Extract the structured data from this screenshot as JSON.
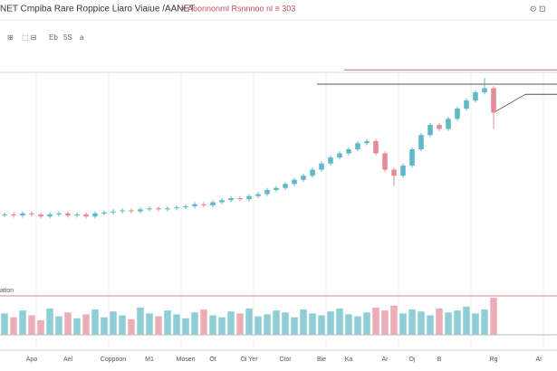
{
  "header": {
    "title": "NET Cmpiba Rare Roppice Liaro Viaiue /AANET",
    "status": "≠ Aoonnonrnl Rsnnnoo nl ≡ 303"
  },
  "toolbar": [
    "⊞",
    "⬚ ⊟",
    "Eb",
    "5S",
    "a"
  ],
  "volume_label": "ation",
  "chart_data": {
    "type": "candlestick",
    "open": [
      27.8,
      28,
      27.5,
      28.5,
      28,
      27,
      28,
      28.5,
      27.5,
      28,
      27,
      28.5,
      29,
      29.5,
      30,
      29.5,
      30.5,
      31,
      30.5,
      31,
      31.5,
      32,
      33,
      32.5,
      34,
      35,
      36,
      35.5,
      37,
      38,
      40,
      41,
      43,
      45,
      47,
      50,
      53,
      56,
      58,
      60,
      63,
      64,
      58,
      50,
      47,
      52,
      60,
      67,
      72,
      70,
      75,
      80,
      84,
      88,
      90
    ],
    "high": [
      29,
      29,
      29.5,
      29.5,
      29,
      29,
      29.5,
      29.5,
      29,
      29,
      29.5,
      30,
      30.5,
      31,
      31,
      31.5,
      32,
      32,
      32,
      32.5,
      33,
      34,
      34,
      35,
      36,
      37,
      37,
      38,
      39,
      41,
      42,
      44,
      46,
      48,
      51,
      54,
      57,
      59,
      61,
      64,
      65,
      65,
      59,
      51,
      53,
      61,
      68,
      73,
      73,
      76,
      81,
      85,
      89,
      95,
      91
    ],
    "low": [
      26.8,
      26.5,
      26.5,
      27,
      26,
      26,
      27,
      26.5,
      26.5,
      26,
      26,
      27.5,
      28,
      28.5,
      28.5,
      28.5,
      29.5,
      29.5,
      29.5,
      30,
      30.5,
      31,
      31.5,
      31.5,
      33,
      34,
      34.5,
      34.5,
      36,
      37,
      39,
      40,
      42,
      44,
      46,
      49,
      52,
      55,
      57,
      59,
      62,
      57,
      49,
      42,
      46,
      51,
      59,
      66,
      69,
      69,
      74,
      79,
      83,
      87,
      70
    ],
    "close": [
      28,
      27.5,
      28.5,
      28,
      27,
      28,
      28.5,
      27.5,
      28,
      27,
      28.5,
      29,
      29.5,
      30,
      29.5,
      30.5,
      31,
      30.5,
      31,
      31.5,
      32,
      33,
      32.5,
      34,
      35,
      36,
      35.5,
      37,
      38,
      40,
      41,
      43,
      45,
      47,
      50,
      53,
      56,
      58,
      60,
      63,
      64,
      58,
      50,
      47,
      52,
      60,
      67,
      72,
      70,
      75,
      80,
      84,
      88,
      90,
      78
    ],
    "volume": [
      22,
      18,
      25,
      20,
      15,
      27,
      19,
      23,
      17,
      21,
      26,
      18,
      24,
      20,
      16,
      28,
      22,
      19,
      25,
      21,
      17,
      23,
      26,
      20,
      18,
      24,
      22,
      27,
      19,
      21,
      25,
      23,
      18,
      26,
      22,
      20,
      24,
      27,
      21,
      19,
      23,
      28,
      25,
      30,
      22,
      26,
      24,
      20,
      27,
      23,
      25,
      29,
      22,
      26,
      38
    ],
    "up_color": "#5fb8c6",
    "down_color": "#e48a98",
    "ylim": [
      0,
      100
    ],
    "volume_ylim": [
      0,
      40
    ],
    "xlim": [
      -0.5,
      61
    ],
    "levels": [
      99,
      92,
      87
    ],
    "xticks": [
      {
        "value": 3,
        "label": "Apo"
      },
      {
        "value": 7,
        "label": "Ael"
      },
      {
        "value": 12,
        "label": "Coppoon"
      },
      {
        "value": 16,
        "label": "M1"
      },
      {
        "value": 20,
        "label": "Mosen"
      },
      {
        "value": 23,
        "label": "Ot"
      },
      {
        "value": 27,
        "label": "Oi Yer"
      },
      {
        "value": 31,
        "label": "Ctor"
      },
      {
        "value": 35,
        "label": "Bie"
      },
      {
        "value": 38,
        "label": "Ka"
      },
      {
        "value": 42,
        "label": "Ar"
      },
      {
        "value": 45,
        "label": "Oj"
      },
      {
        "value": 48,
        "label": "B"
      },
      {
        "value": 54,
        "label": "Rg"
      },
      {
        "value": 59,
        "label": "Ar"
      }
    ]
  }
}
